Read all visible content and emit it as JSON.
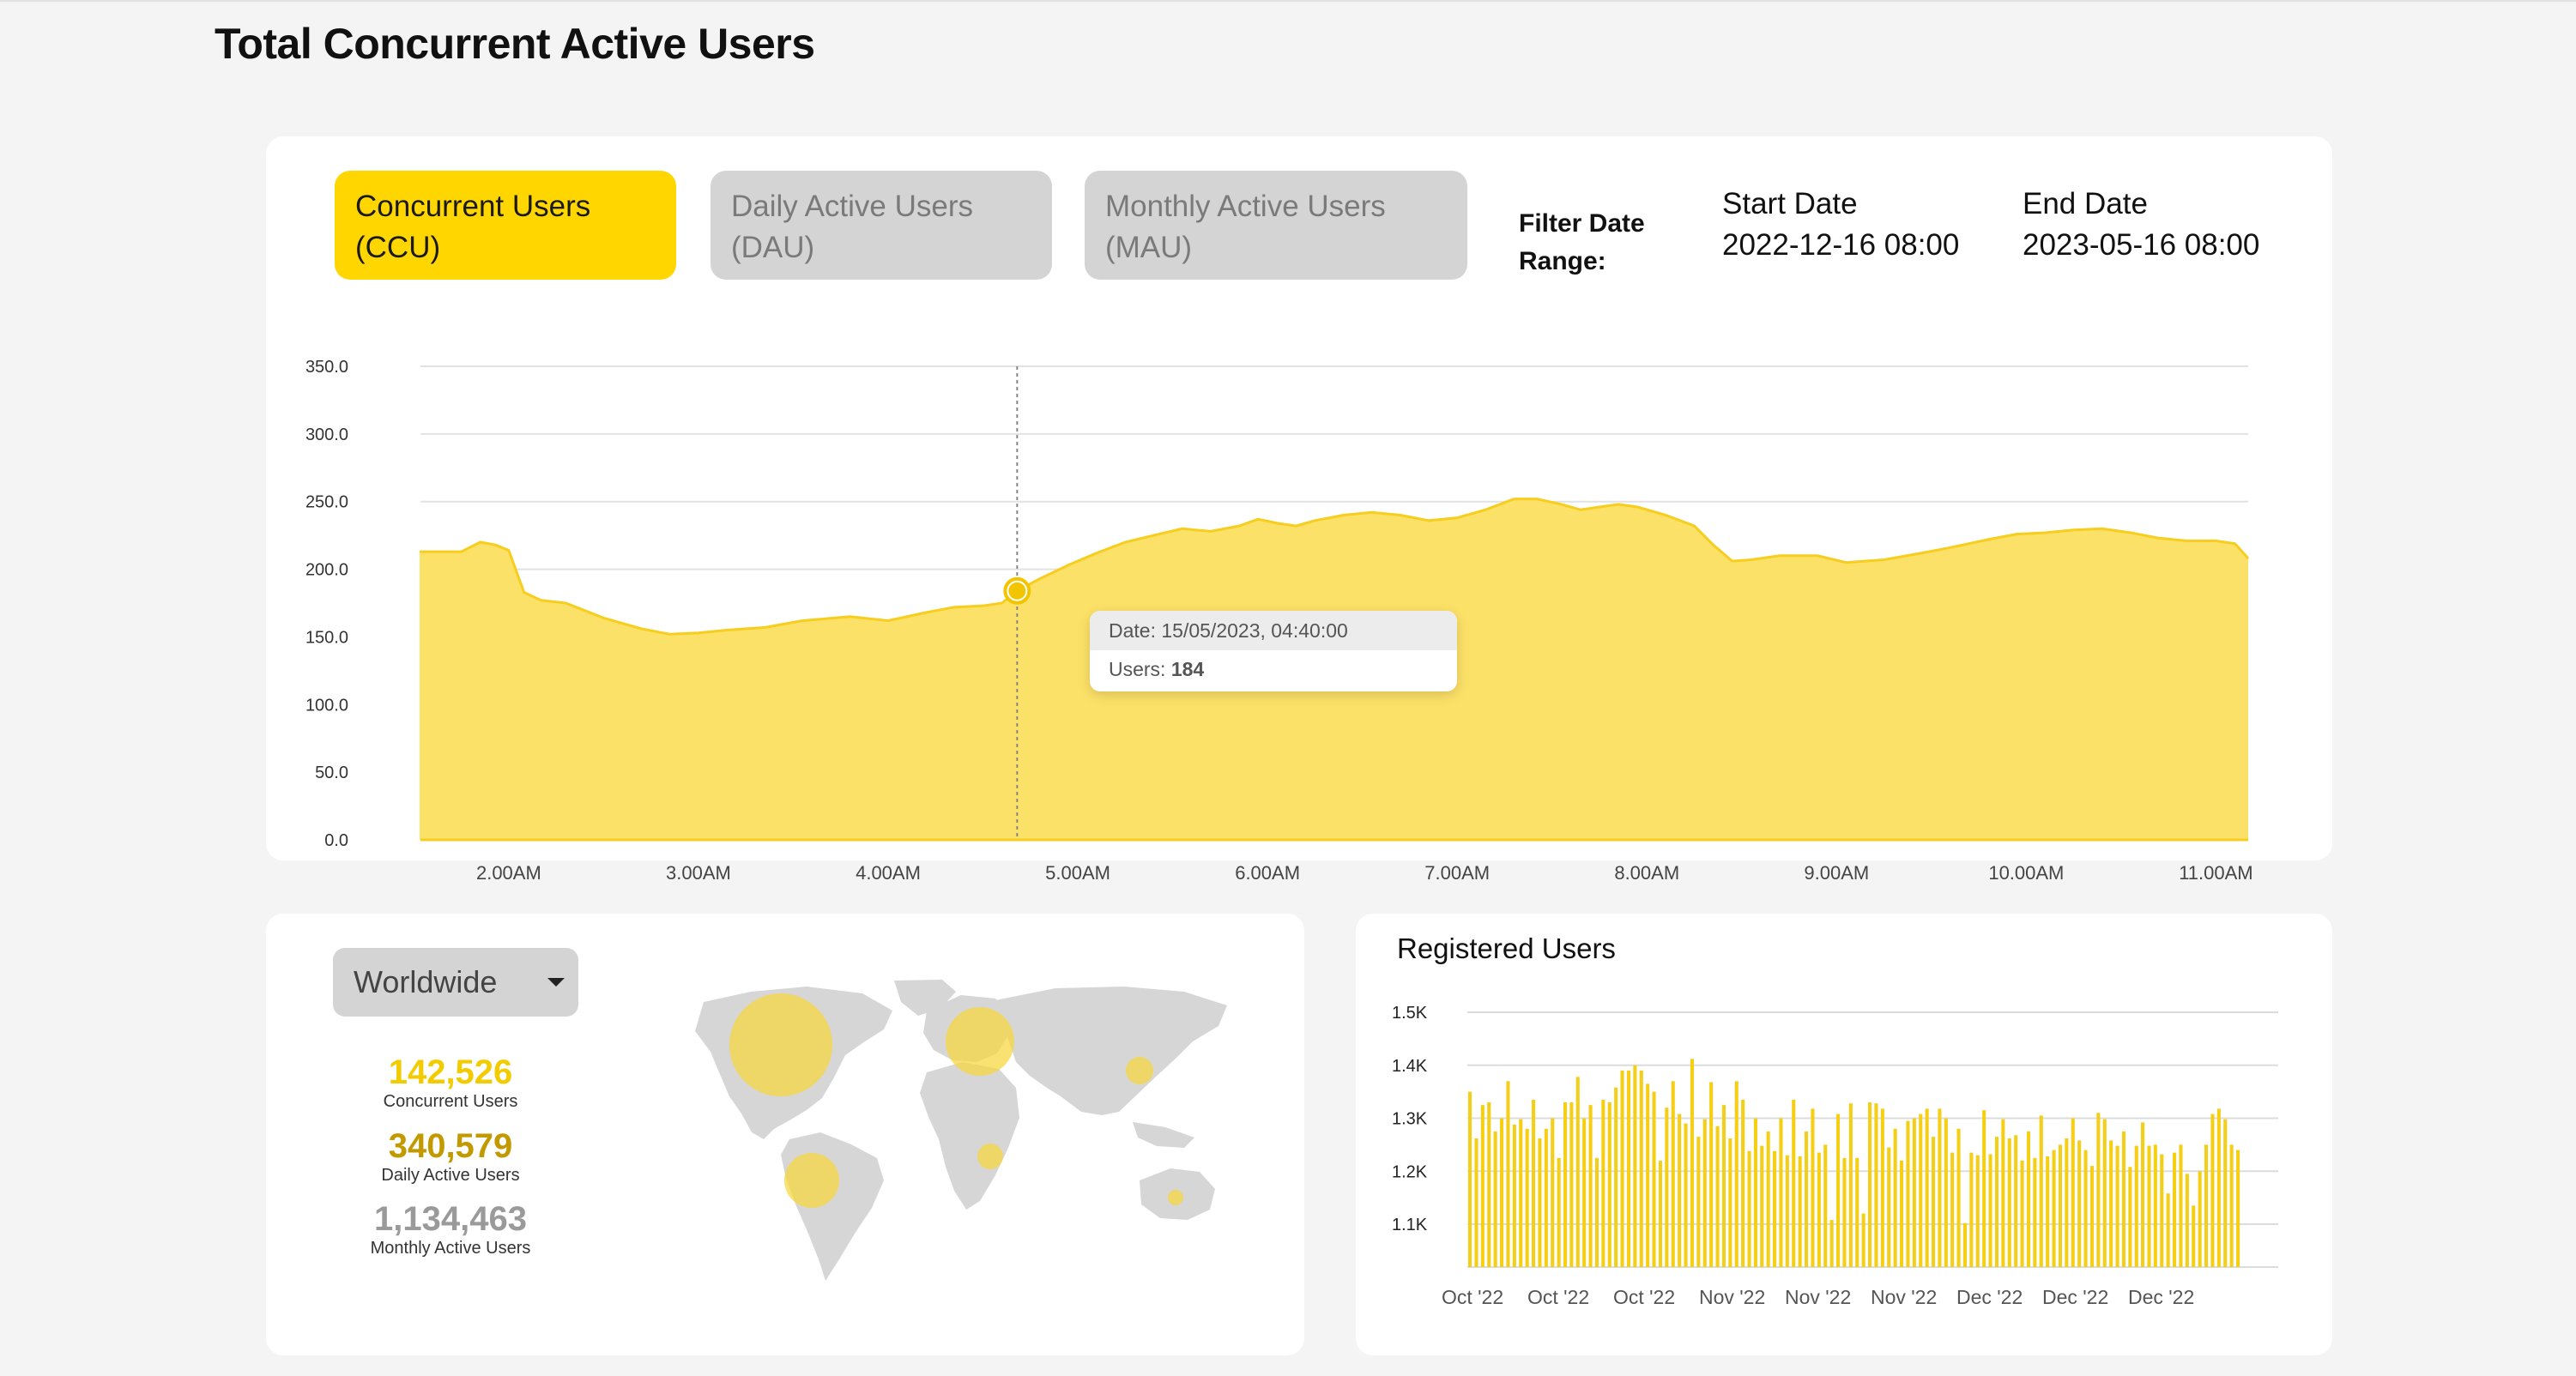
{
  "page": {
    "title": "Total Concurrent Active Users"
  },
  "tabs": {
    "ccu": {
      "line1": "Concurrent Users",
      "line2": "(CCU)"
    },
    "dau": {
      "line1": "Daily Active Users",
      "line2": "(DAU)"
    },
    "mau": {
      "line1": "Monthly Active Users",
      "line2": "(MAU)"
    }
  },
  "filter": {
    "label_line1": "Filter Date",
    "label_line2": "Range:",
    "start_label": "Start Date",
    "start_value": "2022-12-16 08:00",
    "end_label": "End Date",
    "end_value": "2023-05-16 08:00"
  },
  "tooltip": {
    "date_prefix": "Date: ",
    "date_value": "15/05/2023, 04:40:00",
    "users_prefix": "Users: ",
    "users_value": "184"
  },
  "geo": {
    "dropdown_value": "Worldwide",
    "stats": [
      {
        "value": "142,526",
        "label": "Concurrent Users",
        "color": "#f2cc00"
      },
      {
        "value": "340,579",
        "label": "Daily Active Users",
        "color": "#c29a00"
      },
      {
        "value": "1,134,463",
        "label": "Monthly Active Users",
        "color": "#9a9a9a"
      }
    ]
  },
  "registered": {
    "title": "Registered Users"
  },
  "colors": {
    "accent": "#ffd600",
    "area_fill": "#fce168",
    "area_line": "#f7cd1e",
    "inactive_tab": "#d4d4d4",
    "bar": "#f5cf16"
  },
  "chart_data": [
    {
      "type": "area",
      "title": "",
      "xlabel": "",
      "ylabel": "",
      "ylim": [
        0,
        350
      ],
      "y_ticks": [
        "0.0",
        "50.0",
        "100.0",
        "150.0",
        "200.0",
        "250.0",
        "300.0",
        "350.0"
      ],
      "x_tick_labels": [
        "2.00AM",
        "3.00AM",
        "4.00AM",
        "5.00AM",
        "6.00AM",
        "7.00AM",
        "8.00AM",
        "9.00AM",
        "10.00AM",
        "11.00AM"
      ],
      "x_tick_hours": [
        2,
        3,
        4,
        5,
        6,
        7,
        8,
        9,
        10,
        11
      ],
      "x_range_hours": [
        1.53,
        11.17
      ],
      "grid": true,
      "highlight": {
        "x": 4.68,
        "y": 184
      },
      "series": [
        {
          "x": [
            1.53,
            1.65,
            1.75,
            1.85,
            1.93,
            2.0,
            2.08,
            2.17,
            2.3,
            2.5,
            2.7,
            2.85,
            3.0,
            3.15,
            3.35,
            3.55,
            3.8,
            4.0,
            4.2,
            4.35,
            4.5,
            4.6,
            4.68,
            4.8,
            4.95,
            5.1,
            5.25,
            5.4,
            5.55,
            5.7,
            5.85,
            5.95,
            6.05,
            6.15,
            6.25,
            6.4,
            6.55,
            6.7,
            6.85,
            7.0,
            7.15,
            7.3,
            7.42,
            7.55,
            7.65,
            7.75,
            7.85,
            7.95,
            8.1,
            8.25,
            8.35,
            8.45,
            8.55,
            8.7,
            8.9,
            9.05,
            9.25,
            9.45,
            9.6,
            9.8,
            9.95,
            10.1,
            10.25,
            10.4,
            10.55,
            10.7,
            10.85,
            11.0,
            11.1,
            11.17
          ],
          "y": [
            213,
            213,
            213,
            220,
            218,
            214,
            183,
            177,
            175,
            164,
            156,
            152,
            153,
            155,
            157,
            162,
            165,
            162,
            168,
            172,
            173,
            175,
            184,
            193,
            203,
            212,
            220,
            225,
            230,
            228,
            232,
            237,
            234,
            232,
            236,
            240,
            242,
            240,
            236,
            238,
            244,
            252,
            252,
            248,
            244,
            246,
            248,
            246,
            240,
            232,
            218,
            206,
            207,
            210,
            210,
            205,
            207,
            212,
            216,
            222,
            226,
            227,
            229,
            230,
            227,
            223,
            221,
            221,
            219,
            208
          ]
        }
      ]
    },
    {
      "type": "bar",
      "title": "Registered Users",
      "ylim": [
        1000,
        1500
      ],
      "y_ticks": [
        "1.1K",
        "1.2K",
        "1.3K",
        "1.4K",
        "1.5K"
      ],
      "x_tick_labels": [
        "Oct '22",
        "Oct '22",
        "Oct '22",
        "Nov '22",
        "Nov '22",
        "Nov '22",
        "Dec '22",
        "Dec '22",
        "Dec '22"
      ],
      "grid": true,
      "values": [
        1350,
        1262,
        1325,
        1330,
        1275,
        1300,
        1370,
        1288,
        1298,
        1280,
        1335,
        1262,
        1280,
        1300,
        1225,
        1330,
        1330,
        1378,
        1300,
        1325,
        1225,
        1335,
        1330,
        1358,
        1390,
        1390,
        1400,
        1390,
        1365,
        1350,
        1220,
        1320,
        1370,
        1308,
        1290,
        1412,
        1265,
        1298,
        1368,
        1285,
        1325,
        1262,
        1370,
        1335,
        1238,
        1300,
        1248,
        1275,
        1238,
        1300,
        1230,
        1335,
        1228,
        1275,
        1318,
        1235,
        1250,
        1108,
        1308,
        1225,
        1328,
        1225,
        1120,
        1330,
        1328,
        1318,
        1245,
        1280,
        1220,
        1295,
        1300,
        1308,
        1318,
        1265,
        1318,
        1300,
        1235,
        1280,
        1102,
        1235,
        1230,
        1315,
        1232,
        1265,
        1298,
        1262,
        1268,
        1220,
        1275,
        1225,
        1305,
        1228,
        1240,
        1250,
        1262,
        1300,
        1258,
        1240,
        1210,
        1310,
        1298,
        1258,
        1248,
        1275,
        1208,
        1248,
        1292,
        1248,
        1250,
        1232,
        1158,
        1235,
        1250,
        1195,
        1135,
        1200,
        1250,
        1308,
        1318,
        1298,
        1250,
        1240
      ]
    }
  ]
}
